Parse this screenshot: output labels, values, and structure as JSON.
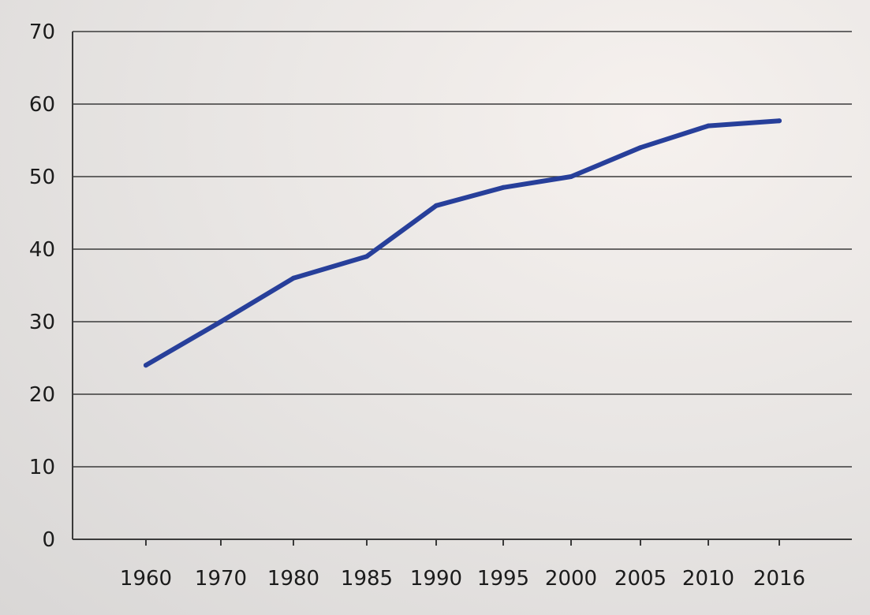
{
  "chart_data": {
    "type": "line",
    "title": "",
    "xlabel": "",
    "ylabel": "",
    "categories": [
      "1960",
      "1970",
      "1980",
      "1985",
      "1990",
      "1995",
      "2000",
      "2005",
      "2010",
      "2016"
    ],
    "series": [
      {
        "values": [
          24,
          30,
          36,
          39,
          46,
          48.5,
          50,
          54,
          57,
          57.7
        ],
        "color": "#273f9a"
      }
    ],
    "ylim": [
      0,
      70
    ],
    "yticks": [
      "0",
      "10",
      "20",
      "30",
      "40",
      "50",
      "60",
      "70"
    ],
    "grid": true,
    "legend": "none"
  }
}
